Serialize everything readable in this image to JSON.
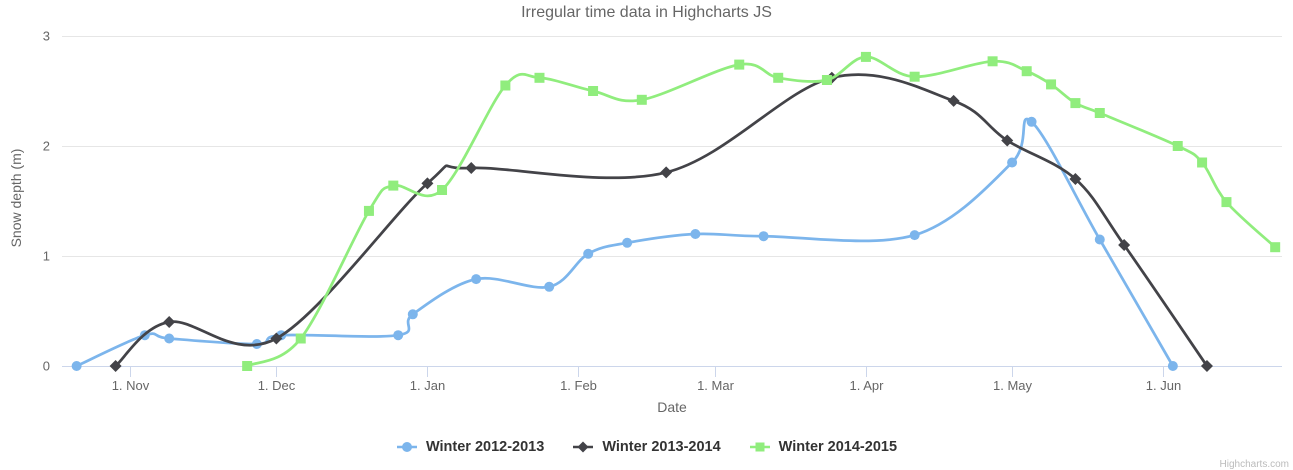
{
  "title": "Irregular time data in Highcharts JS",
  "credits": "Highcharts.com",
  "chart_data": {
    "type": "line",
    "line_shape": "spline",
    "title": "Irregular time data in Highcharts JS",
    "xlabel": "Date",
    "ylabel": "Snow depth (m)",
    "ylim": [
      0,
      3
    ],
    "yticks": [
      {
        "value": 0,
        "label": "0"
      },
      {
        "value": 1,
        "label": "1"
      },
      {
        "value": 2,
        "label": "2"
      },
      {
        "value": 3,
        "label": "3"
      }
    ],
    "x_unit": "days since 21. Oct (season start)",
    "xlim_days": [
      -3,
      247.4
    ],
    "xticks": [
      {
        "day": 11,
        "label": "1. Nov"
      },
      {
        "day": 41,
        "label": "1. Dec"
      },
      {
        "day": 72,
        "label": "1. Jan"
      },
      {
        "day": 103,
        "label": "1. Feb"
      },
      {
        "day": 131,
        "label": "1. Mar"
      },
      {
        "day": 162,
        "label": "1. Apr"
      },
      {
        "day": 192,
        "label": "1. May"
      },
      {
        "day": 223,
        "label": "1. Jun"
      }
    ],
    "grid": "horizontal",
    "legend_position": "bottom-center",
    "axis_colors": {
      "grid": "#e6e6e6",
      "axis_line": "#ccd6eb",
      "tick": "#ccd6eb",
      "label": "#666666"
    },
    "series": [
      {
        "name": "Winter 2012-2013",
        "color": "#7cb5ec",
        "marker": "circle",
        "points": [
          [
            "21. Oct",
            0,
            0
          ],
          [
            "4. Nov",
            14,
            0.28
          ],
          [
            "9. Nov",
            19,
            0.25
          ],
          [
            "27. Nov",
            37,
            0.2
          ],
          [
            "2. Dec",
            42,
            0.28
          ],
          [
            "26. Dec",
            66,
            0.28
          ],
          [
            "29. Dec",
            69,
            0.47
          ],
          [
            "11. Jan",
            82,
            0.79
          ],
          [
            "26. Jan",
            97,
            0.72
          ],
          [
            "3. Feb",
            105,
            1.02
          ],
          [
            "11. Feb",
            113,
            1.12
          ],
          [
            "25. Feb",
            127,
            1.2
          ],
          [
            "11. Mar",
            141,
            1.18
          ],
          [
            "11. Apr",
            172,
            1.19
          ],
          [
            "1. May",
            192,
            1.85
          ],
          [
            "5. May",
            196,
            2.22
          ],
          [
            "19. May",
            210,
            1.15
          ],
          [
            "3. Jun",
            225,
            0
          ]
        ]
      },
      {
        "name": "Winter 2013-2014",
        "color": "#434348",
        "marker": "diamond",
        "points": [
          [
            "29. Oct",
            8,
            0
          ],
          [
            "9. Nov",
            19,
            0.4
          ],
          [
            "1. Dec",
            41,
            0.25
          ],
          [
            "1. Jan",
            72,
            1.66
          ],
          [
            "10. Jan",
            81,
            1.8
          ],
          [
            "19. Feb",
            121,
            1.76
          ],
          [
            "25. Mar",
            155,
            2.62
          ],
          [
            "19. Apr",
            180,
            2.41
          ],
          [
            "30. Apr",
            191,
            2.05
          ],
          [
            "14. May",
            205,
            1.7
          ],
          [
            "24. May",
            215,
            1.1
          ],
          [
            "10. Jun",
            232,
            0
          ]
        ]
      },
      {
        "name": "Winter 2014-2015",
        "color": "#90ed7d",
        "marker": "square",
        "points": [
          [
            "25. Nov",
            35,
            0
          ],
          [
            "6. Dec",
            46,
            0.25
          ],
          [
            "20. Dec",
            60,
            1.41
          ],
          [
            "25. Dec",
            65,
            1.64
          ],
          [
            "4. Jan",
            75,
            1.6
          ],
          [
            "17. Jan",
            88,
            2.55
          ],
          [
            "24. Jan",
            95,
            2.62
          ],
          [
            "4. Feb",
            106,
            2.5
          ],
          [
            "14. Feb",
            116,
            2.42
          ],
          [
            "6. Mar",
            136,
            2.74
          ],
          [
            "14. Mar",
            144,
            2.62
          ],
          [
            "24. Mar",
            154,
            2.6
          ],
          [
            "1. Apr",
            162,
            2.81
          ],
          [
            "11. Apr",
            172,
            2.63
          ],
          [
            "27. Apr",
            188,
            2.77
          ],
          [
            "4. May",
            195,
            2.68
          ],
          [
            "9. May",
            200,
            2.56
          ],
          [
            "14. May",
            205,
            2.39
          ],
          [
            "19. May",
            210,
            2.3
          ],
          [
            "4. Jun",
            226,
            2
          ],
          [
            "9. Jun",
            231,
            1.85
          ],
          [
            "14. Jun",
            236,
            1.49
          ],
          [
            "24. Jun",
            246,
            1.08
          ]
        ]
      }
    ]
  }
}
